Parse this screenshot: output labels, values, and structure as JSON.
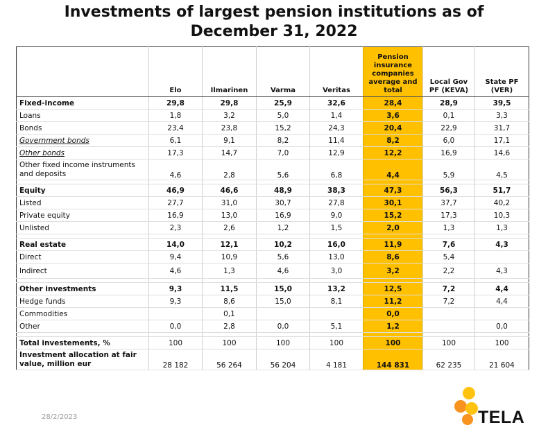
{
  "title_line1": "Investments of largest pension institutions as of",
  "title_line2": "December 31, 2022",
  "columns": [
    "",
    "Elo",
    "Ilmarinen",
    "Varma",
    "Veritas",
    "Pension insurance companies average and total",
    "Local Gov PF (KEVA)",
    "State PF (VER)"
  ],
  "rows": [
    {
      "label": "Fixed-income",
      "style": "bold",
      "values": [
        "29,8",
        "29,8",
        "25,9",
        "32,6",
        "28,4",
        "28,9",
        "39,5"
      ]
    },
    {
      "label": "Loans",
      "style": "",
      "values": [
        "1,8",
        "3,2",
        "5,0",
        "1,4",
        "3,6",
        "0,1",
        "3,3"
      ]
    },
    {
      "label": "Bonds",
      "style": "",
      "values": [
        "23,4",
        "23,8",
        "15,2",
        "24,3",
        "20,4",
        "22,9",
        "31,7"
      ]
    },
    {
      "label": "Government bonds",
      "style": "italic",
      "values": [
        "6,1",
        "9,1",
        "8,2",
        "11,4",
        "8,2",
        "6,0",
        "17,1"
      ]
    },
    {
      "label": "Other bonds",
      "style": "italic",
      "values": [
        "17,3",
        "14,7",
        "7,0",
        "12,9",
        "12,2",
        "16,9",
        "14,6"
      ]
    },
    {
      "label": "Other fixed income instruments and deposits",
      "style": "wrap",
      "values": [
        "4,6",
        "2,8",
        "5,6",
        "6,8",
        "4,4",
        "5,9",
        "4,5"
      ]
    },
    {
      "label": "",
      "style": "spacer",
      "values": [
        "",
        "",
        "",
        "",
        "",
        "",
        ""
      ]
    },
    {
      "label": "Equity",
      "style": "bold",
      "values": [
        "46,9",
        "46,6",
        "48,9",
        "38,3",
        "47,3",
        "56,3",
        "51,7"
      ]
    },
    {
      "label": "Listed",
      "style": "",
      "values": [
        "27,7",
        "31,0",
        "30,7",
        "27,8",
        "30,1",
        "37,7",
        "40,2"
      ]
    },
    {
      "label": "Private equity",
      "style": "",
      "values": [
        "16,9",
        "13,0",
        "16,9",
        "9,0",
        "15,2",
        "17,3",
        "10,3"
      ]
    },
    {
      "label": "Unlisted",
      "style": "",
      "values": [
        "2,3",
        "2,6",
        "1,2",
        "1,5",
        "2,0",
        "1,3",
        "1,3"
      ]
    },
    {
      "label": "",
      "style": "spacer",
      "values": [
        "",
        "",
        "",
        "",
        "",
        "",
        ""
      ]
    },
    {
      "label": "Real estate",
      "style": "bold",
      "values": [
        "14,0",
        "12,1",
        "10,2",
        "16,0",
        "11,9",
        "7,6",
        "4,3"
      ]
    },
    {
      "label": "Direct",
      "style": "",
      "values": [
        "9,4",
        "10,9",
        "5,6",
        "13,0",
        "8,6",
        "5,4",
        ""
      ]
    },
    {
      "label": "Indirect",
      "style": "tall",
      "values": [
        "4,6",
        "1,3",
        "4,6",
        "3,0",
        "3,2",
        "2,2",
        "4,3"
      ]
    },
    {
      "label": "",
      "style": "spacer",
      "values": [
        "",
        "",
        "",
        "",
        "",
        "",
        ""
      ]
    },
    {
      "label": "Other investments",
      "style": "bold",
      "values": [
        "9,3",
        "11,5",
        "15,0",
        "13,2",
        "12,5",
        "7,2",
        "4,4"
      ]
    },
    {
      "label": "Hedge funds",
      "style": "",
      "values": [
        "9,3",
        "8,6",
        "15,0",
        "8,1",
        "11,2",
        "7,2",
        "4,4"
      ]
    },
    {
      "label": "Commodities",
      "style": "",
      "values": [
        "",
        "0,1",
        "",
        "",
        "0,0",
        "",
        ""
      ]
    },
    {
      "label": "Other",
      "style": "",
      "values": [
        "0,0",
        "2,8",
        "0,0",
        "5,1",
        "1,2",
        "",
        "0,0"
      ]
    },
    {
      "label": "",
      "style": "spacer",
      "values": [
        "",
        "",
        "",
        "",
        "",
        "",
        ""
      ]
    },
    {
      "label": "Total investements, %",
      "style": "boldlabel total",
      "values": [
        "100",
        "100",
        "100",
        "100",
        "100",
        "100",
        "100"
      ]
    },
    {
      "label": "Investment allocation at fair value, million eur",
      "style": "boldlabel wrap",
      "values": [
        "28 182",
        "56 264",
        "56 204",
        "4 181",
        "144 831",
        "62 235",
        "21 604"
      ]
    }
  ],
  "footer_date": "28/2/2023",
  "logo_text": "TELA",
  "colors": {
    "highlight": "#ffc000",
    "logo_orange": "#f7931e",
    "logo_yellow": "#ffc20e"
  }
}
